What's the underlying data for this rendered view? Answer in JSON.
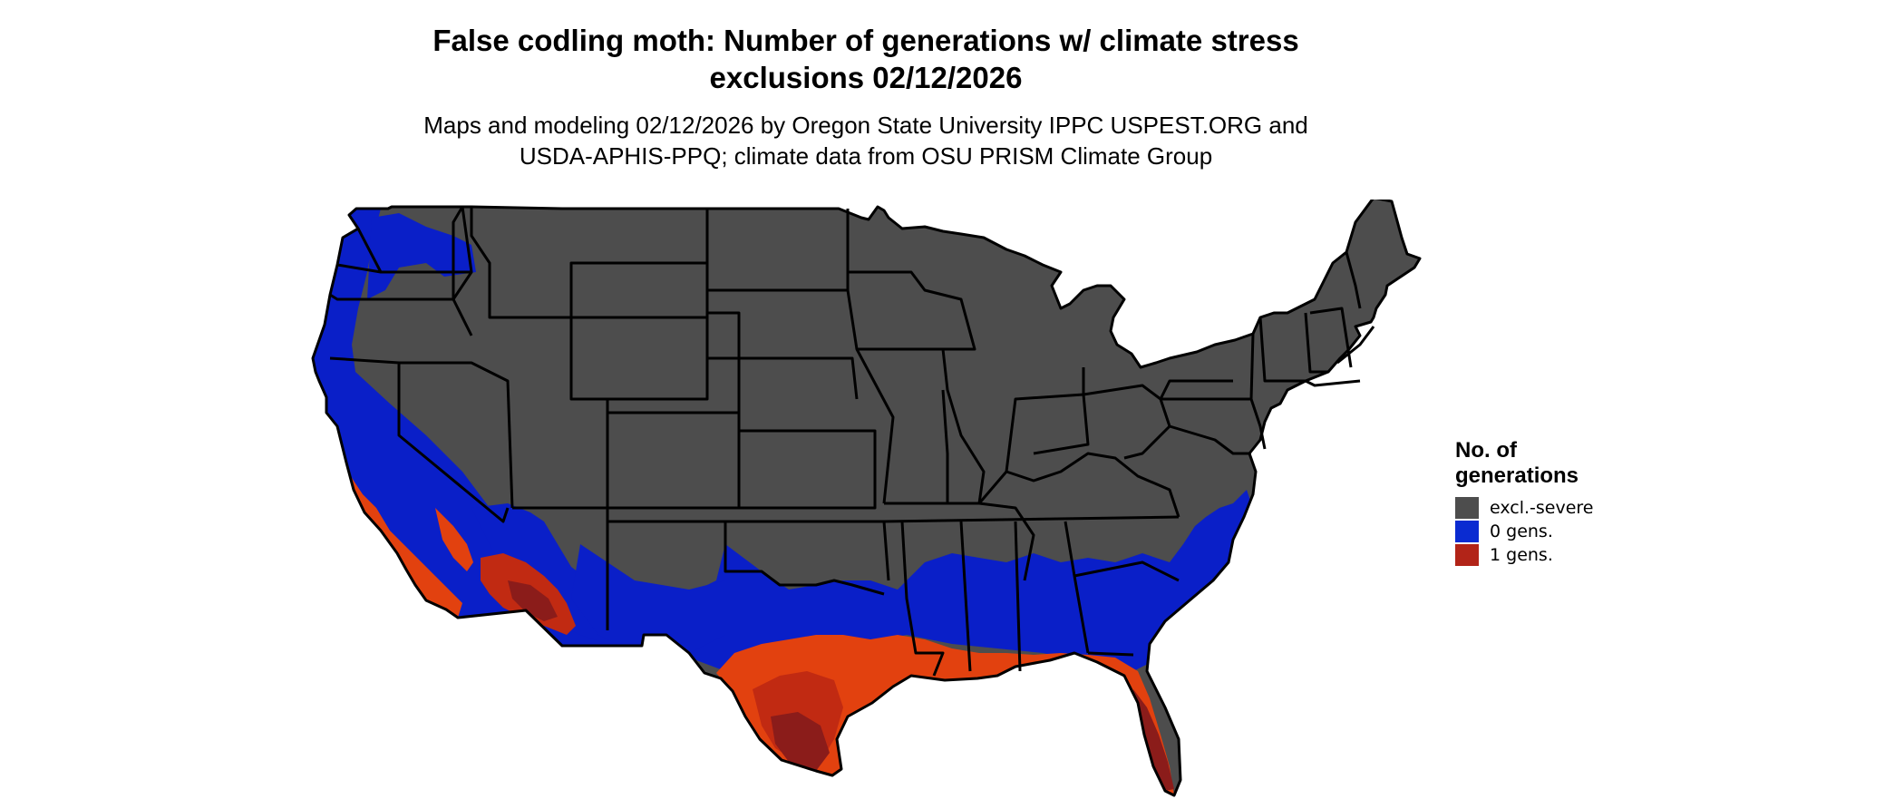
{
  "header": {
    "title_line1": "False codling moth: Number of generations w/ climate stress",
    "title_line2": "exclusions 02/12/2026",
    "subtitle_line1": "Maps and modeling 02/12/2026 by Oregon State University IPPC USPEST.ORG and",
    "subtitle_line2": "USDA-APHIS-PPQ; climate data from OSU PRISM Climate Group"
  },
  "legend": {
    "title_line1": "No. of",
    "title_line2": "generations",
    "items": [
      {
        "label": "excl.-severe",
        "color": "#4d4d4d"
      },
      {
        "label": "0 gens.",
        "color": "#0a2bd1"
      },
      {
        "label": "1 gens.",
        "color": "#b22418"
      }
    ]
  },
  "colors": {
    "excluded": "#4d4d4d",
    "zero": "#0a1fc8",
    "one_light": "#e2410f",
    "one_mid": "#c12a12",
    "one_dark": "#8b1c1a",
    "borders": "#000000"
  }
}
